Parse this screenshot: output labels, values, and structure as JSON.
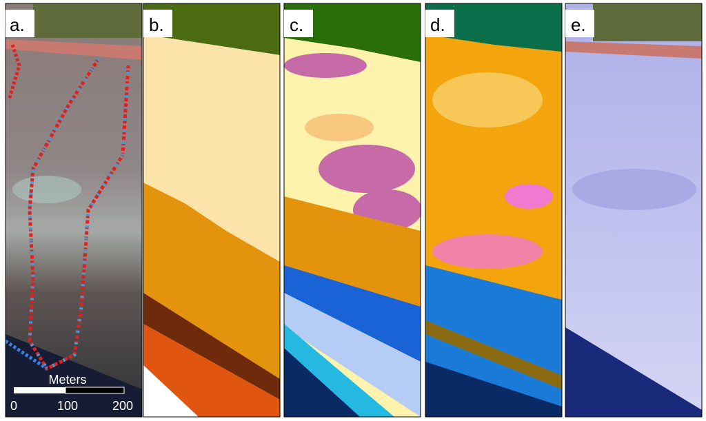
{
  "panels": [
    {
      "label": "a."
    },
    {
      "label": "b."
    },
    {
      "label": "c."
    },
    {
      "label": "d."
    },
    {
      "label": "e."
    }
  ],
  "scale_bar": {
    "title": "Meters",
    "labels": [
      "0",
      "100",
      "200"
    ]
  }
}
